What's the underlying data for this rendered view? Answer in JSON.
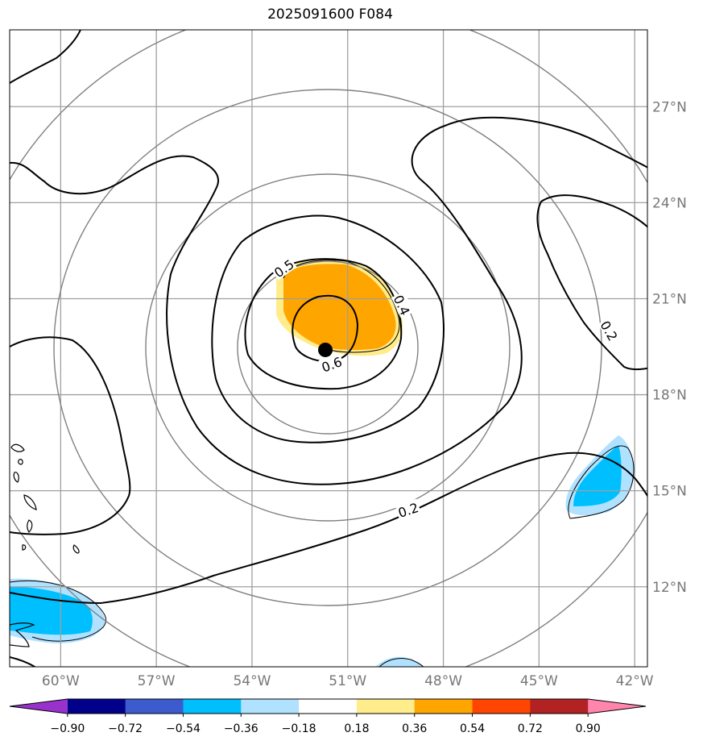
{
  "title": "2025091600 F084",
  "lon_labels": [
    {
      "deg": -60,
      "text": "60°W"
    },
    {
      "deg": -57,
      "text": "57°W"
    },
    {
      "deg": -54,
      "text": "54°W"
    },
    {
      "deg": -51,
      "text": "51°W"
    },
    {
      "deg": -48,
      "text": "48°W"
    },
    {
      "deg": -45,
      "text": "45°W"
    },
    {
      "deg": -42,
      "text": "42°W"
    }
  ],
  "lat_labels": [
    {
      "deg": 27,
      "text": "27°N"
    },
    {
      "deg": 24,
      "text": "24°N"
    },
    {
      "deg": 21,
      "text": "21°N"
    },
    {
      "deg": 18,
      "text": "18°N"
    },
    {
      "deg": 15,
      "text": "15°N"
    },
    {
      "deg": 12,
      "text": "12°N"
    }
  ],
  "map_extent": {
    "lon_min": -61.6,
    "lon_max": -41.6,
    "lat_min": 9.5,
    "lat_max": 29.4
  },
  "storm_center": {
    "lon": -51.7,
    "lat": 19.4
  },
  "contour_labels": [
    {
      "text": "0.5",
      "lon": -53.0,
      "lat": 21.95,
      "rotate": -35
    },
    {
      "text": "0.6",
      "lon": -51.5,
      "lat": 18.95,
      "rotate": -20
    },
    {
      "text": "0.4",
      "lon": -49.3,
      "lat": 20.8,
      "rotate": 65
    },
    {
      "text": "0.2",
      "lon": -42.8,
      "lat": 20.0,
      "rotate": 60
    },
    {
      "text": "0.2",
      "lon": -49.1,
      "lat": 14.4,
      "rotate": -18
    }
  ],
  "colorbar": {
    "colors": [
      "#9932cc",
      "#00008b",
      "#3b5bcf",
      "#00bfff",
      "#b0e2ff",
      "#ffffff",
      "#ffec8b",
      "#ffa500",
      "#ff4500",
      "#b22222",
      "#ff85ad"
    ],
    "tick_labels": [
      "−0.90",
      "−0.72",
      "−0.54",
      "−0.36",
      "−0.18",
      "0.18",
      "0.36",
      "0.54",
      "0.72",
      "0.90"
    ]
  }
}
